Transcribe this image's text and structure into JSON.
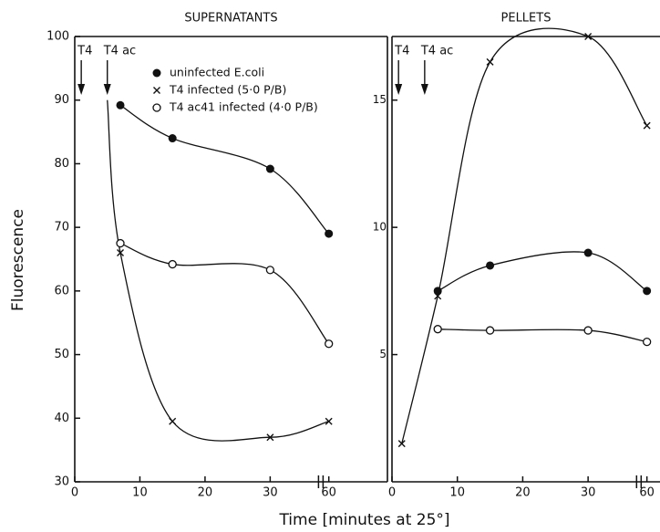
{
  "ylabel": "Fluorescence",
  "xlabel": "Time [minutes at 25°]",
  "legend": {
    "position": "upper center"
  },
  "chart_data": [
    {
      "type": "line",
      "title": "SUPERNATANTS",
      "xlim": [
        0,
        69
      ],
      "xbreak": [
        37,
        59
      ],
      "xticks": [
        0,
        10,
        20,
        30,
        60
      ],
      "ylim": [
        30,
        100
      ],
      "yticks": [
        30,
        40,
        50,
        60,
        70,
        80,
        90,
        100
      ],
      "annotations": [
        {
          "text": "T4",
          "x": 1
        },
        {
          "text": "T4 ac",
          "x": 5
        }
      ],
      "series": [
        {
          "name": "uninfected E.coli",
          "marker": "filled-circle",
          "color": "#111111",
          "x": [
            7,
            15,
            30,
            60
          ],
          "values": [
            89.2,
            84,
            79.2,
            69
          ]
        },
        {
          "name": "T4 infected (5·0 P/B)",
          "marker": "cross",
          "color": "#111111",
          "x": [
            5,
            7,
            15,
            30,
            60
          ],
          "values": [
            90,
            66,
            39.5,
            37,
            39.5
          ]
        },
        {
          "name": "T4 ac41 infected (4·0 P/B)",
          "marker": "open-circle",
          "color": "#111111",
          "x": [
            7,
            15,
            30,
            60
          ],
          "values": [
            67.5,
            64.2,
            63.3,
            51.7
          ]
        }
      ]
    },
    {
      "type": "line",
      "title": "PELLETS",
      "xlim": [
        0,
        62
      ],
      "xbreak": [
        37,
        59
      ],
      "xticks": [
        0,
        10,
        20,
        30,
        60
      ],
      "ylim": [
        0,
        17.5
      ],
      "yticks": [
        5,
        10,
        15
      ],
      "annotations": [
        {
          "text": "T4",
          "x": 1
        },
        {
          "text": "T4 ac",
          "x": 5
        }
      ],
      "series": [
        {
          "name": "uninfected E.coli",
          "marker": "filled-circle",
          "color": "#111111",
          "x": [
            7,
            15,
            30,
            60
          ],
          "values": [
            7.5,
            8.5,
            9,
            7.5
          ]
        },
        {
          "name": "T4 infected (5·0 P/B)",
          "marker": "cross",
          "color": "#111111",
          "x": [
            1.5,
            7,
            15,
            30,
            60
          ],
          "values": [
            1.5,
            7.3,
            16.5,
            17.5,
            14
          ]
        },
        {
          "name": "T4 ac41 infected (4·0 P/B)",
          "marker": "open-circle",
          "color": "#111111",
          "x": [
            7,
            15,
            30,
            60
          ],
          "values": [
            6,
            5.95,
            5.95,
            5.5
          ]
        }
      ]
    }
  ]
}
